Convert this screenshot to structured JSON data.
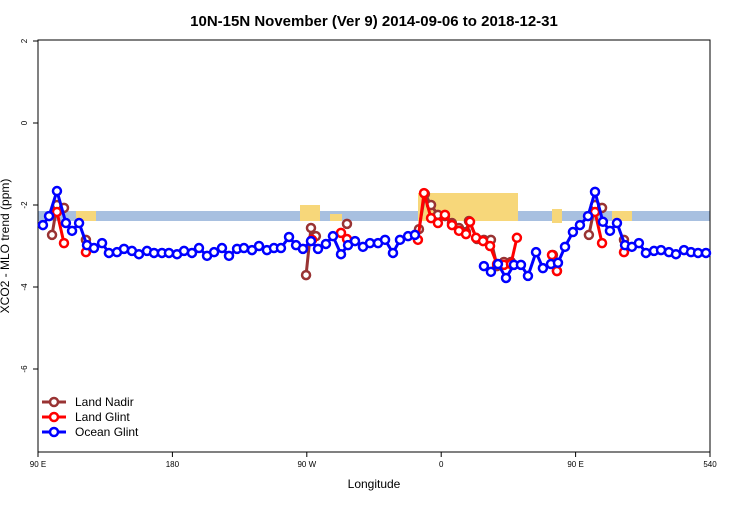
{
  "chart_data": {
    "type": "line",
    "title": "10N-15N November (Ver 9)   2014-09-06 to 2018-12-31",
    "x_label": "Longitude",
    "y_label": "XCO2 - MLO trend (ppm)",
    "xlim": [
      90,
      540
    ],
    "ylim": [
      -8,
      2
    ],
    "xticks": [
      {
        "value": 90,
        "label": "90 E"
      },
      180,
      {
        "value": 270,
        "label": "90 W"
      },
      {
        "value": 360,
        "label": "0"
      },
      {
        "value": 450,
        "label": "90 E"
      },
      540
    ],
    "yticks": [
      2,
      0,
      -2,
      -4,
      -6
    ],
    "legend": "bottom-left",
    "series": [
      {
        "name": "Land Nadir",
        "color": "#993333",
        "x": [
          99.4,
          102.7,
          107.4,
          null,
          122.1,
          null,
          269.5,
          272.8,
          276.1,
          null,
          296.9,
          null,
          345.1,
          349.1,
          353.2,
          357.8,
          362.5,
          367.2,
          371.9,
          376.6,
          378.6,
          384.0,
          388.6,
          393.3,
          397.4,
          402.0,
          406.7,
          null,
          434.8,
          437.5,
          null,
          458.9,
          463.0,
          467.7,
          null,
          482.4
        ],
        "values": [
          -2.73,
          -2.0,
          -2.07,
          null,
          -2.85,
          null,
          -3.71,
          -2.56,
          -2.76,
          null,
          -2.46,
          null,
          -2.59,
          -1.73,
          -2.0,
          -2.24,
          -2.27,
          -2.44,
          -2.56,
          -2.66,
          -2.39,
          -2.83,
          -2.85,
          -2.85,
          -3.49,
          -3.39,
          -3.39,
          null,
          -3.22,
          -3.61,
          null,
          -2.73,
          -2.0,
          -2.07,
          null,
          -2.85
        ]
      },
      {
        "name": "Land Glint",
        "color": "#ff0000",
        "x": [
          102.7,
          107.4,
          null,
          122.1,
          null,
          273.5,
          null,
          292.9,
          296.9,
          null,
          344.4,
          348.5,
          353.2,
          357.8,
          362.5,
          367.2,
          371.9,
          376.6,
          379.3,
          383.3,
          388.0,
          392.7,
          397.4,
          402.0,
          406.7,
          410.7,
          null,
          434.2,
          437.5,
          null,
          463.0,
          467.7,
          null,
          482.4
        ],
        "values": [
          -2.17,
          -2.93,
          null,
          -3.15,
          null,
          -2.85,
          null,
          -2.68,
          -2.83,
          null,
          -2.85,
          -1.71,
          -2.32,
          -2.44,
          -2.24,
          -2.49,
          -2.63,
          -2.71,
          -2.41,
          -2.8,
          -2.88,
          -3.0,
          -3.44,
          -3.46,
          -3.44,
          -2.8,
          null,
          -3.22,
          -3.61,
          null,
          -2.17,
          -2.93,
          null,
          -3.15
        ]
      },
      {
        "name": "Ocean Glint",
        "color": "#0000ff",
        "x": [
          93.3,
          97.4,
          102.7,
          108.7,
          112.8,
          117.5,
          122.8,
          127.5,
          132.9,
          137.5,
          142.9,
          147.6,
          152.9,
          157.6,
          163.0,
          167.7,
          173.0,
          177.7,
          183.1,
          187.8,
          193.1,
          197.8,
          203.2,
          207.9,
          213.2,
          217.9,
          223.3,
          227.9,
          233.3,
          238.0,
          243.3,
          248.0,
          252.7,
          258.1,
          262.8,
          267.4,
          272.8,
          277.5,
          282.8,
          287.5,
          292.9,
          297.6,
          302.3,
          307.6,
          312.3,
          317.7,
          322.4,
          327.7,
          332.4,
          337.8,
          342.4,
          null,
          388.6,
          393.3,
          398.0,
          403.4,
          408.7,
          413.4,
          418.1,
          423.5,
          428.1,
          433.5,
          438.2,
          442.9,
          448.2,
          452.9,
          458.3,
          463.0,
          468.3,
          473.0,
          477.7,
          483.1,
          487.7,
          492.4,
          497.1,
          502.5,
          507.2,
          512.5,
          517.2,
          522.6,
          527.3,
          532.0,
          537.3
        ],
        "values": [
          -2.49,
          -2.27,
          -1.66,
          -2.44,
          -2.63,
          -2.44,
          -2.98,
          -3.05,
          -2.93,
          -3.17,
          -3.15,
          -3.07,
          -3.12,
          -3.2,
          -3.12,
          -3.17,
          -3.17,
          -3.17,
          -3.2,
          -3.12,
          -3.17,
          -3.05,
          -3.24,
          -3.15,
          -3.05,
          -3.24,
          -3.07,
          -3.05,
          -3.1,
          -3.0,
          -3.1,
          -3.05,
          -3.05,
          -2.78,
          -2.98,
          -3.07,
          -2.88,
          -3.07,
          -2.95,
          -2.76,
          -3.2,
          -2.98,
          -2.88,
          -3.02,
          -2.93,
          -2.93,
          -2.85,
          -3.17,
          -2.85,
          -2.76,
          -2.73,
          null,
          -3.49,
          -3.63,
          -3.44,
          -3.78,
          -3.46,
          -3.46,
          -3.73,
          -3.15,
          -3.54,
          -3.44,
          -3.41,
          -3.02,
          -2.66,
          -2.49,
          -2.27,
          -1.68,
          -2.41,
          -2.63,
          -2.44,
          -2.98,
          -3.02,
          -2.93,
          -3.17,
          -3.12,
          -3.1,
          -3.15,
          -3.2,
          -3.1,
          -3.15,
          -3.17,
          -3.17
        ]
      }
    ]
  }
}
